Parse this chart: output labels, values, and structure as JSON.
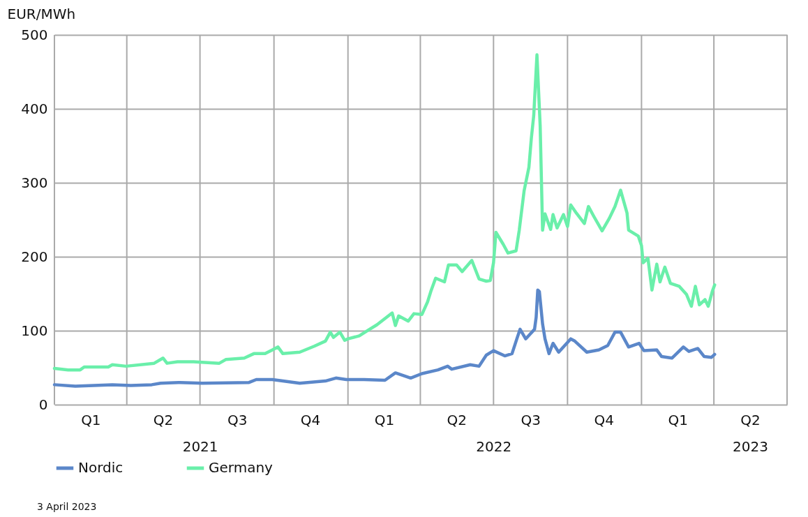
{
  "chart_data": {
    "type": "line",
    "ylabel": "EUR/MWh",
    "annotations": [
      "3 April 2023"
    ],
    "x2lim": [
      "2021-01-01",
      "2023-07-01"
    ],
    "x2ticks": [
      {
        "value": "2021-07-01",
        "label": "2021"
      },
      {
        "value": "2022-07-01",
        "label": "2022"
      },
      {
        "value": "2023-05-16",
        "label": "2023"
      }
    ],
    "xlim": [
      "2021-01-01",
      "2023-07-01"
    ],
    "xticks": [
      {
        "value": "2021-01-01",
        "label": null
      },
      {
        "value": "2021-04-01",
        "label": null
      },
      {
        "value": "2021-07-01",
        "label": null
      },
      {
        "value": "2021-10-01",
        "label": null
      },
      {
        "value": "2022-01-01",
        "label": null
      },
      {
        "value": "2022-04-01",
        "label": null
      },
      {
        "value": "2022-07-01",
        "label": null
      },
      {
        "value": "2022-10-01",
        "label": null
      },
      {
        "value": "2023-01-01",
        "label": null
      },
      {
        "value": "2023-04-01",
        "label": null
      },
      {
        "value": "2023-07-01",
        "label": null
      },
      {
        "value": "2021-02-15",
        "label": "Q1"
      },
      {
        "value": "2021-05-16",
        "label": "Q2"
      },
      {
        "value": "2021-08-16",
        "label": "Q3"
      },
      {
        "value": "2021-11-15",
        "label": "Q4"
      },
      {
        "value": "2022-02-15",
        "label": "Q1"
      },
      {
        "value": "2022-05-16",
        "label": "Q2"
      },
      {
        "value": "2022-08-16",
        "label": "Q3"
      },
      {
        "value": "2022-11-15",
        "label": "Q4"
      },
      {
        "value": "2023-02-15",
        "label": "Q1"
      },
      {
        "value": "2023-05-16",
        "label": "Q2"
      }
    ],
    "ylim": [
      0,
      500
    ],
    "yticks": [
      0,
      100,
      200,
      300,
      400,
      500
    ],
    "grid": true,
    "legend": "bottom",
    "line_style": "solid",
    "marker": "none",
    "series": [
      {
        "name": "Nordic",
        "color": "#5b87c9",
        "x": [
          "2021-01-01",
          "2021-01-27",
          "2021-03-14",
          "2021-04-06",
          "2021-05-02",
          "2021-05-13",
          "2021-06-06",
          "2021-07-04",
          "2021-08-31",
          "2021-09-09",
          "2021-09-29",
          "2021-11-02",
          "2021-12-04",
          "2021-12-17",
          "2021-12-30",
          "2022-01-21",
          "2022-02-16",
          "2022-03-01",
          "2022-03-20",
          "2022-04-03",
          "2022-04-23",
          "2022-05-05",
          "2022-05-10",
          "2022-06-02",
          "2022-06-13",
          "2022-06-22",
          "2022-07-01",
          "2022-07-15",
          "2022-07-24",
          "2022-07-30",
          "2022-08-03",
          "2022-08-10",
          "2022-08-16",
          "2022-08-21",
          "2022-08-23",
          "2022-08-25",
          "2022-08-27",
          "2022-08-31",
          "2022-09-03",
          "2022-09-08",
          "2022-09-13",
          "2022-09-20",
          "2022-10-05",
          "2022-10-10",
          "2022-10-25",
          "2022-11-09",
          "2022-11-20",
          "2022-11-29",
          "2022-12-06",
          "2022-12-16",
          "2022-12-29",
          "2023-01-04",
          "2023-01-20",
          "2023-01-26",
          "2023-02-08",
          "2023-02-22",
          "2023-03-01",
          "2023-03-12",
          "2023-03-20",
          "2023-03-29",
          "2023-04-02"
        ],
        "values": [
          27,
          25,
          27,
          26,
          27,
          29,
          30,
          29,
          30,
          34,
          34,
          29,
          32,
          36,
          34,
          34,
          33,
          43,
          36,
          42,
          47,
          52,
          48,
          54,
          52,
          67,
          73,
          66,
          69,
          89,
          102,
          89,
          96,
          102,
          118,
          155,
          153,
          109,
          89,
          69,
          83,
          71,
          89,
          86,
          71,
          74,
          80,
          98,
          98,
          78,
          83,
          73,
          74,
          65,
          63,
          78,
          72,
          76,
          65,
          64,
          68
        ]
      },
      {
        "name": "Germany",
        "color": "#6aefaa",
        "x": [
          "2021-01-01",
          "2021-01-18",
          "2021-02-02",
          "2021-02-07",
          "2021-03-09",
          "2021-03-14",
          "2021-03-31",
          "2021-05-05",
          "2021-05-16",
          "2021-05-21",
          "2021-06-03",
          "2021-06-23",
          "2021-07-25",
          "2021-08-02",
          "2021-08-25",
          "2021-09-06",
          "2021-09-20",
          "2021-09-29",
          "2021-10-06",
          "2021-10-12",
          "2021-11-02",
          "2021-11-20",
          "2021-12-04",
          "2021-12-10",
          "2021-12-14",
          "2021-12-22",
          "2021-12-28",
          "2022-01-01",
          "2022-01-15",
          "2022-01-28",
          "2022-02-06",
          "2022-02-25",
          "2022-03-01",
          "2022-03-05",
          "2022-03-17",
          "2022-03-24",
          "2022-04-03",
          "2022-04-10",
          "2022-04-14",
          "2022-04-20",
          "2022-05-01",
          "2022-05-06",
          "2022-05-16",
          "2022-05-23",
          "2022-06-04",
          "2022-06-13",
          "2022-06-22",
          "2022-06-27",
          "2022-07-01",
          "2022-07-04",
          "2022-07-13",
          "2022-07-19",
          "2022-07-29",
          "2022-08-02",
          "2022-08-08",
          "2022-08-14",
          "2022-08-17",
          "2022-08-20",
          "2022-08-24",
          "2022-08-28",
          "2022-08-31",
          "2022-09-03",
          "2022-09-10",
          "2022-09-13",
          "2022-09-18",
          "2022-09-26",
          "2022-10-01",
          "2022-10-05",
          "2022-10-12",
          "2022-10-22",
          "2022-10-27",
          "2022-11-03",
          "2022-11-13",
          "2022-11-22",
          "2022-11-29",
          "2022-12-06",
          "2022-12-14",
          "2022-12-16",
          "2022-12-28",
          "2023-01-01",
          "2023-01-03",
          "2023-01-09",
          "2023-01-14",
          "2023-01-20",
          "2023-01-24",
          "2023-01-30",
          "2023-02-06",
          "2023-02-17",
          "2023-02-26",
          "2023-03-04",
          "2023-03-09",
          "2023-03-14",
          "2023-03-21",
          "2023-03-25",
          "2023-03-30",
          "2023-04-02"
        ],
        "values": [
          49,
          47,
          47,
          51,
          51,
          54,
          52,
          56,
          63,
          56,
          58,
          58,
          56,
          61,
          63,
          69,
          69,
          74,
          78,
          69,
          71,
          79,
          86,
          98,
          91,
          98,
          87,
          89,
          93,
          102,
          108,
          124,
          107,
          120,
          113,
          123,
          122,
          139,
          153,
          171,
          166,
          189,
          189,
          180,
          195,
          170,
          167,
          168,
          192,
          233,
          217,
          205,
          208,
          236,
          289,
          321,
          360,
          391,
          473,
          377,
          236,
          258,
          237,
          257,
          239,
          257,
          241,
          270,
          259,
          245,
          268,
          254,
          235,
          252,
          268,
          290,
          259,
          236,
          228,
          215,
          192,
          198,
          155,
          190,
          166,
          186,
          164,
          160,
          149,
          133,
          160,
          135,
          142,
          133,
          153,
          162
        ]
      }
    ]
  }
}
